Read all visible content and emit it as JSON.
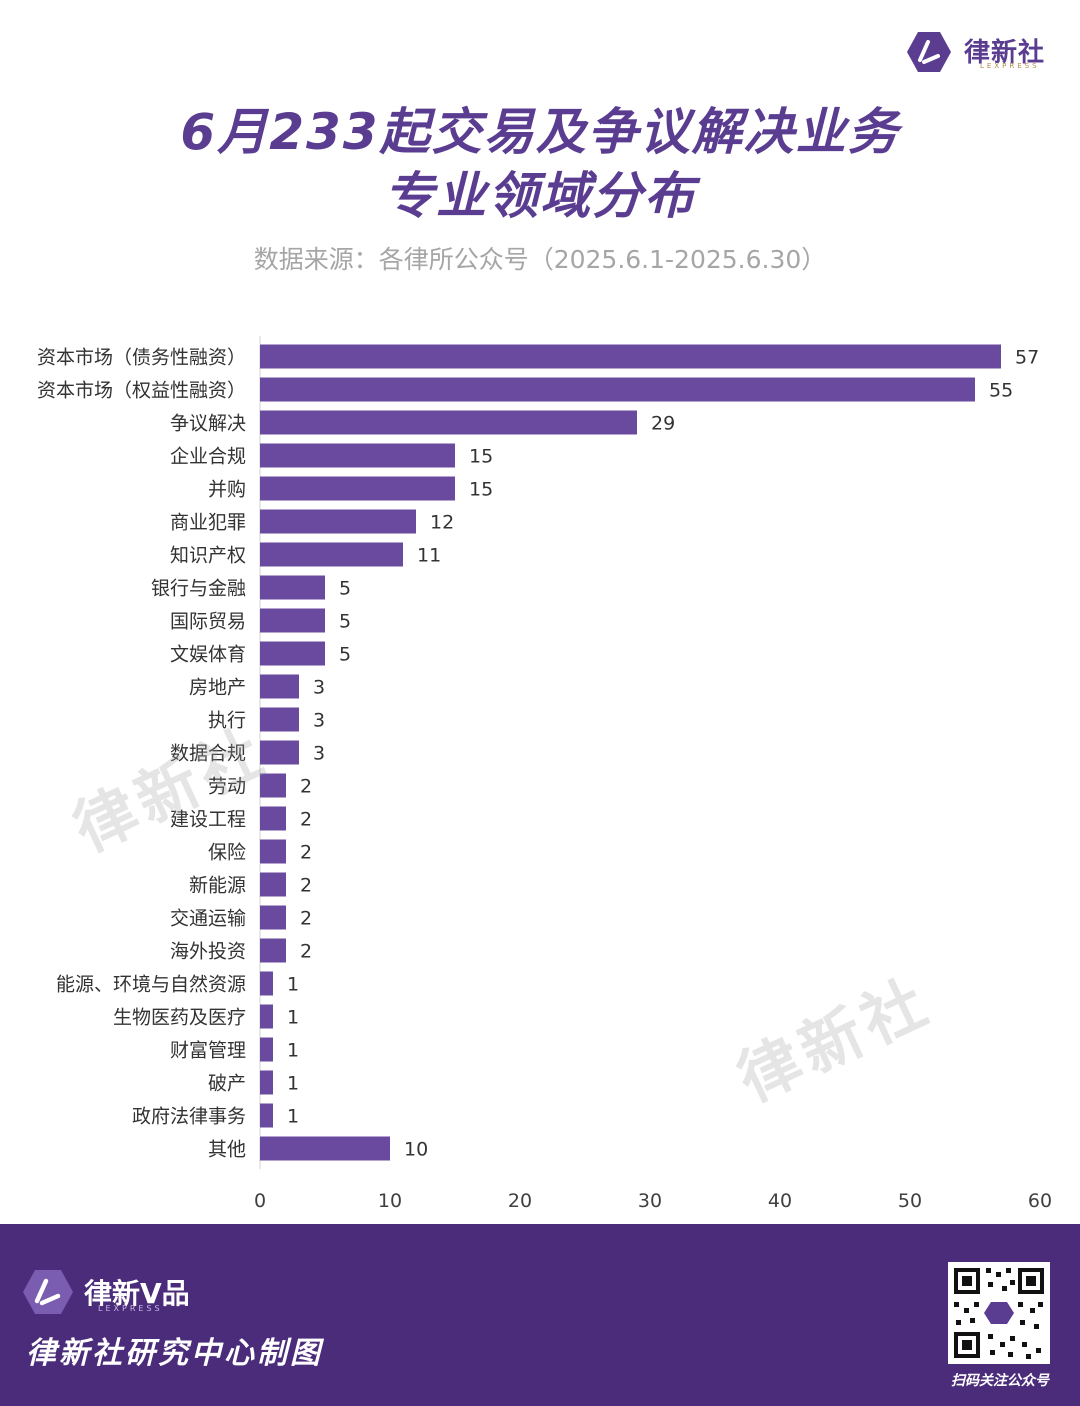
{
  "brand": {
    "name": "律新社",
    "sub": "LEXPRESS",
    "color": "#5a3d91"
  },
  "title": {
    "line1": "6月233起交易及争议解决业务",
    "line2": "专业领域分布"
  },
  "source": "数据来源：各律所公众号（2025.6.1-2025.6.30）",
  "watermark": "律新社",
  "chart_data": {
    "type": "bar",
    "orientation": "horizontal",
    "categories": [
      "资本市场（债务性融资）",
      "资本市场（权益性融资）",
      "争议解决",
      "企业合规",
      "并购",
      "商业犯罪",
      "知识产权",
      "银行与金融",
      "国际贸易",
      "文娱体育",
      "房地产",
      "执行",
      "数据合规",
      "劳动",
      "建设工程",
      "保险",
      "新能源",
      "交通运输",
      "海外投资",
      "能源、环境与自然资源",
      "生物医药及医疗",
      "财富管理",
      "破产",
      "政府法律事务",
      "其他"
    ],
    "values": [
      57,
      55,
      29,
      15,
      15,
      12,
      11,
      5,
      5,
      5,
      3,
      3,
      3,
      2,
      2,
      2,
      2,
      2,
      2,
      1,
      1,
      1,
      1,
      1,
      10
    ],
    "xlim": [
      0,
      60
    ],
    "xticks": [
      0,
      10,
      20,
      30,
      40,
      50,
      60
    ],
    "bar_color": "#6a4a9e",
    "grid": false,
    "data_labels": true
  },
  "footer": {
    "vbrand": "律新V品",
    "vsub": "LEXPRESS",
    "credit": "律新社研究中心制图",
    "qr_caption": "扫码关注公众号",
    "background": "#4a2c7a"
  }
}
